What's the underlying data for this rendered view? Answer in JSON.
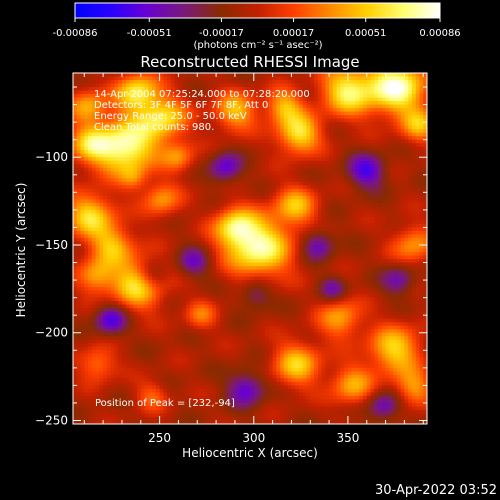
{
  "colorbar": {
    "tick_labels": [
      "-0.00086",
      "-0.00051",
      "-0.00017",
      "0.00017",
      "0.00051",
      "0.00086"
    ],
    "tick_values": [
      -0.00086,
      -0.00051,
      -0.00017,
      0.00017,
      0.00051,
      0.00086
    ],
    "range": [
      -0.00086,
      0.00086
    ],
    "units": "(photons cm⁻² s⁻¹ asec⁻²)",
    "colormap": [
      "#0000ff",
      "#2a00ff",
      "#6a00d0",
      "#7a1a78",
      "#8a2a00",
      "#c22000",
      "#ff4000",
      "#ff8a00",
      "#ffd000",
      "#ffff70",
      "#ffffff"
    ]
  },
  "chart_data": {
    "type": "heatmap",
    "title": "Reconstructed RHESSI Image",
    "xlabel": "Heliocentric X (arcsec)",
    "ylabel": "Heliocentric Y (arcsec)",
    "xlim": [
      204,
      392
    ],
    "ylim": [
      -252,
      -52
    ],
    "xticks": [
      250,
      300,
      350
    ],
    "yticks": [
      -100,
      -150,
      -200,
      -250
    ],
    "xtick_labels": [
      "250",
      "300",
      "350"
    ],
    "ytick_labels": [
      "−100",
      "−150",
      "−200",
      "−250"
    ],
    "annotations": [
      "14-Apr-2004 07:25:24.000 to 07:28:20.000",
      "Detectors: 3F 4F 5F 6F 7F 8F, Att 0",
      "Energy Range: 25.0 - 50.0 keV",
      "Clean     Total counts: 980."
    ],
    "peak_label": "Position of Peak = [232,-94]",
    "peak_position": [
      232,
      -94
    ],
    "blobs": [
      {
        "x": 232,
        "y": -94,
        "r": 11,
        "v": 1.0
      },
      {
        "x": 213,
        "y": -93,
        "r": 8,
        "v": 0.62
      },
      {
        "x": 252,
        "y": -78,
        "r": 9,
        "v": 0.72
      },
      {
        "x": 238,
        "y": -63,
        "r": 8,
        "v": 0.78
      },
      {
        "x": 212,
        "y": -71,
        "r": 7,
        "v": 0.55
      },
      {
        "x": 290,
        "y": -74,
        "r": 8,
        "v": 0.62
      },
      {
        "x": 324,
        "y": -87,
        "r": 8,
        "v": 0.78
      },
      {
        "x": 316,
        "y": -71,
        "r": 7,
        "v": 0.6
      },
      {
        "x": 350,
        "y": -62,
        "r": 10,
        "v": 0.82
      },
      {
        "x": 376,
        "y": -60,
        "r": 11,
        "v": 1.0
      },
      {
        "x": 388,
        "y": -82,
        "r": 7,
        "v": 0.55
      },
      {
        "x": 303,
        "y": -152,
        "r": 12,
        "v": 0.92
      },
      {
        "x": 290,
        "y": -140,
        "r": 8,
        "v": 0.7
      },
      {
        "x": 322,
        "y": -128,
        "r": 8,
        "v": 0.6
      },
      {
        "x": 213,
        "y": -133,
        "r": 9,
        "v": 0.72
      },
      {
        "x": 225,
        "y": -150,
        "r": 8,
        "v": 0.6
      },
      {
        "x": 239,
        "y": -172,
        "r": 10,
        "v": 0.8
      },
      {
        "x": 216,
        "y": -168,
        "r": 7,
        "v": 0.55
      },
      {
        "x": 251,
        "y": -124,
        "r": 7,
        "v": 0.5
      },
      {
        "x": 272,
        "y": -190,
        "r": 6,
        "v": 0.38
      },
      {
        "x": 217,
        "y": -218,
        "r": 7,
        "v": 0.45
      },
      {
        "x": 323,
        "y": -218,
        "r": 9,
        "v": 0.65
      },
      {
        "x": 346,
        "y": -192,
        "r": 8,
        "v": 0.55
      },
      {
        "x": 352,
        "y": -230,
        "r": 8,
        "v": 0.55
      },
      {
        "x": 375,
        "y": -210,
        "r": 10,
        "v": 0.7
      },
      {
        "x": 385,
        "y": -150,
        "r": 8,
        "v": 0.5
      },
      {
        "x": 385,
        "y": -232,
        "r": 7,
        "v": 0.5
      },
      {
        "x": 246,
        "y": -236,
        "r": 6,
        "v": 0.35
      },
      {
        "x": 260,
        "y": -100,
        "r": 6,
        "v": 0.45
      },
      {
        "x": 236,
        "y": -112,
        "r": 5,
        "v": 0.3
      },
      {
        "x": 246,
        "y": -168,
        "r": 6,
        "v": -0.4
      },
      {
        "x": 285,
        "y": -106,
        "r": 6,
        "v": -0.55
      },
      {
        "x": 268,
        "y": -160,
        "r": 6,
        "v": -0.45
      },
      {
        "x": 224,
        "y": -193,
        "r": 6,
        "v": -0.6
      },
      {
        "x": 301,
        "y": -178,
        "r": 6,
        "v": -0.4
      },
      {
        "x": 360,
        "y": -108,
        "r": 7,
        "v": -0.6
      },
      {
        "x": 334,
        "y": -150,
        "r": 6,
        "v": -0.5
      },
      {
        "x": 377,
        "y": -170,
        "r": 6,
        "v": -0.45
      },
      {
        "x": 296,
        "y": -232,
        "r": 7,
        "v": -0.55
      },
      {
        "x": 369,
        "y": -242,
        "r": 6,
        "v": -0.5
      },
      {
        "x": 342,
        "y": -175,
        "r": 5,
        "v": -0.4
      }
    ]
  },
  "footer": {
    "timestamp": "30-Apr-2022 03:52"
  }
}
